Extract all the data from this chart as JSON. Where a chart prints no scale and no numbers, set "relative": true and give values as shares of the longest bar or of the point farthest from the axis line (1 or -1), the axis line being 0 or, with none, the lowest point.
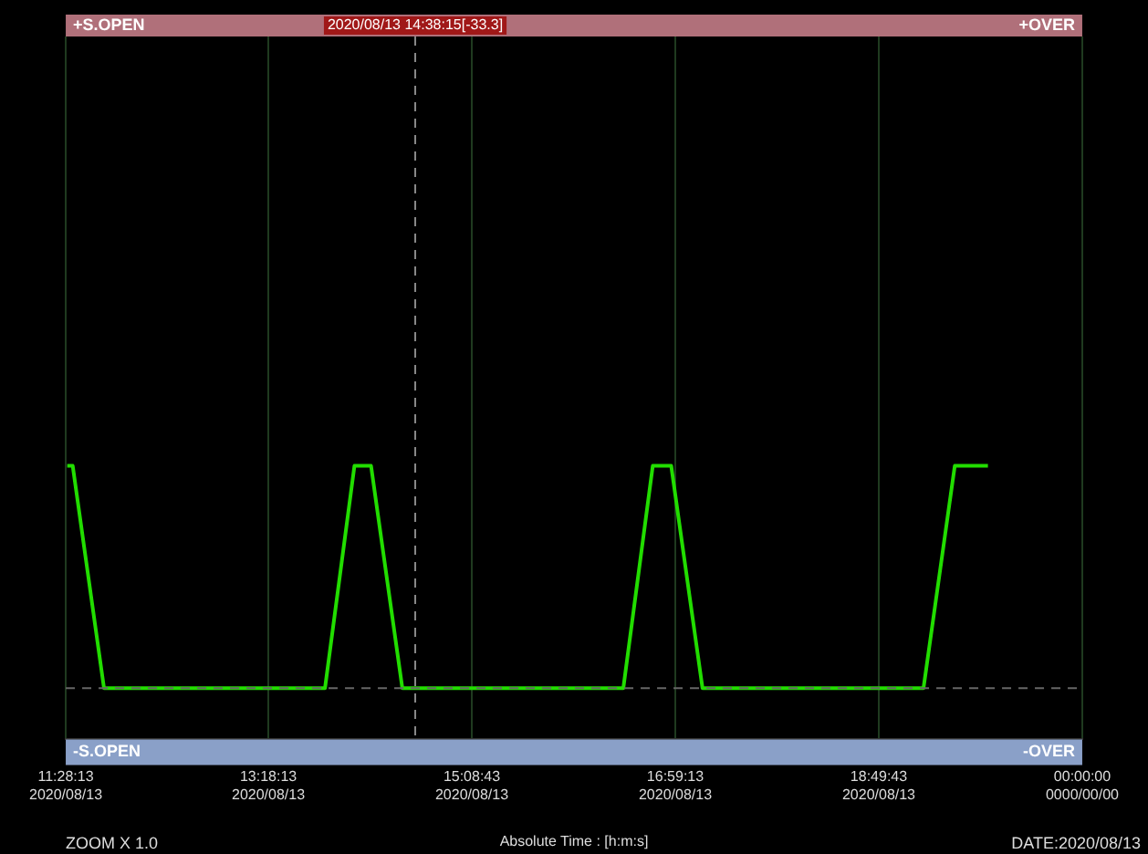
{
  "chart_data": {
    "type": "line",
    "relative": true,
    "xlabel": "Absolute Time : [h:m:s]",
    "x": [
      "2020-08-13T11:29",
      "2020-08-13T11:32",
      "2020-08-13T11:49",
      "2020-08-13T13:49",
      "2020-08-13T14:05",
      "2020-08-13T14:14",
      "2020-08-13T14:31",
      "2020-08-13T16:31",
      "2020-08-13T16:47",
      "2020-08-13T16:57",
      "2020-08-13T17:14",
      "2020-08-13T19:14",
      "2020-08-13T19:31",
      "2020-08-13T19:49"
    ],
    "series": [
      {
        "color": "#22dd00",
        "values": [
          1,
          1,
          0,
          0,
          1,
          1,
          0,
          0,
          1,
          1,
          0,
          0,
          1,
          1
        ]
      }
    ],
    "xlim": [
      "2020-08-13T11:28:13",
      "2020-08-13T20:40:13"
    ],
    "xticks": [
      {
        "value": "2020-08-13T11:28:13",
        "label": "11:28:13\n2020/08/13"
      },
      {
        "value": "2020-08-13T13:18:13",
        "label": "13:18:13\n2020/08/13"
      },
      {
        "value": "2020-08-13T15:08:43",
        "label": "15:08:43\n2020/08/13"
      },
      {
        "value": "2020-08-13T16:59:13",
        "label": "16:59:13\n2020/08/13"
      },
      {
        "value": "2020-08-13T18:49:43",
        "label": "18:49:43\n2020/08/13"
      },
      {
        "value": "2020-08-13T20:40:13",
        "label": "00:00:00\n0000/00/00"
      }
    ],
    "ref_lines": [
      {
        "axis": "x",
        "value": "2020-08-13T14:38",
        "label": "2020/08/13 14:38:15[-33.3]",
        "line_style": "dashed",
        "color": "#888888"
      },
      {
        "axis": "y",
        "value": 0,
        "line_style": "dashed",
        "color": "#666666"
      }
    ],
    "annotations": [
      "+S.OPEN",
      "+OVER",
      "-S.OPEN",
      "-OVER",
      "ZOOM X 1.0",
      "DATE:2020/08/13"
    ],
    "grid": "x",
    "legend": false,
    "marker": "none",
    "line_style": "solid"
  }
}
